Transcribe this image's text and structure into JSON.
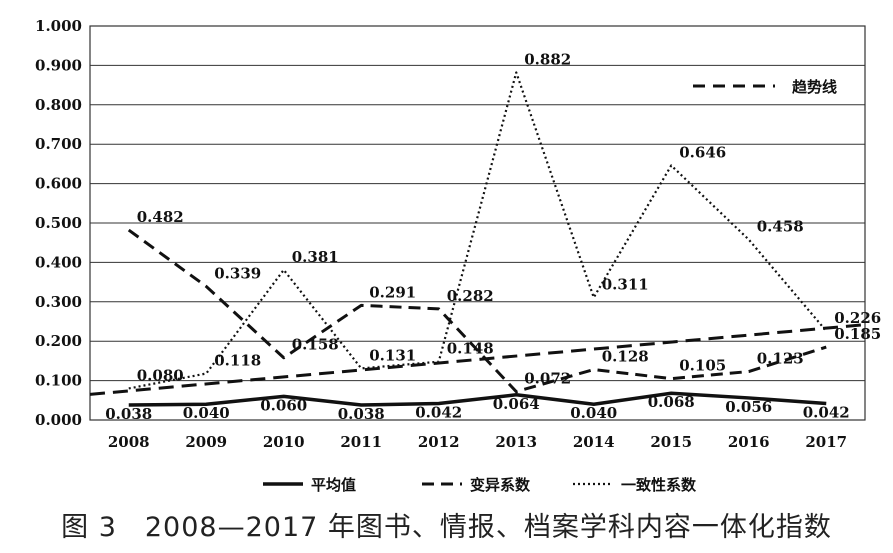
{
  "caption": "图 3　2008—2017 年图书、情报、档案学科内容一体化指数",
  "chart_data": {
    "type": "line",
    "categories": [
      "2008",
      "2009",
      "2010",
      "2011",
      "2012",
      "2013",
      "2014",
      "2015",
      "2016",
      "2017"
    ],
    "ylim": [
      0,
      1.0
    ],
    "yticks": [
      "0.000",
      "0.100",
      "0.200",
      "0.300",
      "0.400",
      "0.500",
      "0.600",
      "0.700",
      "0.800",
      "0.900",
      "1.000"
    ],
    "grid": true,
    "legend_position": "bottom",
    "series": [
      {
        "name": "平均值",
        "style": "solid",
        "values": [
          0.038,
          0.04,
          0.06,
          0.038,
          0.042,
          0.064,
          0.04,
          0.068,
          0.056,
          0.042
        ],
        "labels": [
          "0.038",
          "0.040",
          "0.060",
          "0.038",
          "0.042",
          "0.064",
          "0.040",
          "0.068",
          "0.056",
          "0.042"
        ]
      },
      {
        "name": "变异系数",
        "style": "dashed",
        "values": [
          0.482,
          0.339,
          0.158,
          0.291,
          0.282,
          0.072,
          0.128,
          0.105,
          0.123,
          0.185
        ],
        "labels": [
          "0.482",
          "0.339",
          "0.158",
          "0.291",
          "0.282",
          "0.072",
          "0.128",
          "0.105",
          "0.123",
          "0.185"
        ]
      },
      {
        "name": "一致性系数",
        "style": "dotted",
        "values": [
          0.08,
          0.118,
          0.381,
          0.131,
          0.148,
          0.882,
          0.311,
          0.646,
          0.458,
          0.226
        ],
        "labels": [
          "0.080",
          "0.118",
          "0.381",
          "0.131",
          "0.148",
          "0.882",
          "0.311",
          "0.646",
          "0.458",
          "0.226"
        ]
      }
    ],
    "trendline": {
      "name": "趋势线",
      "style": "long-dash",
      "start": 0.065,
      "end": 0.242
    }
  }
}
